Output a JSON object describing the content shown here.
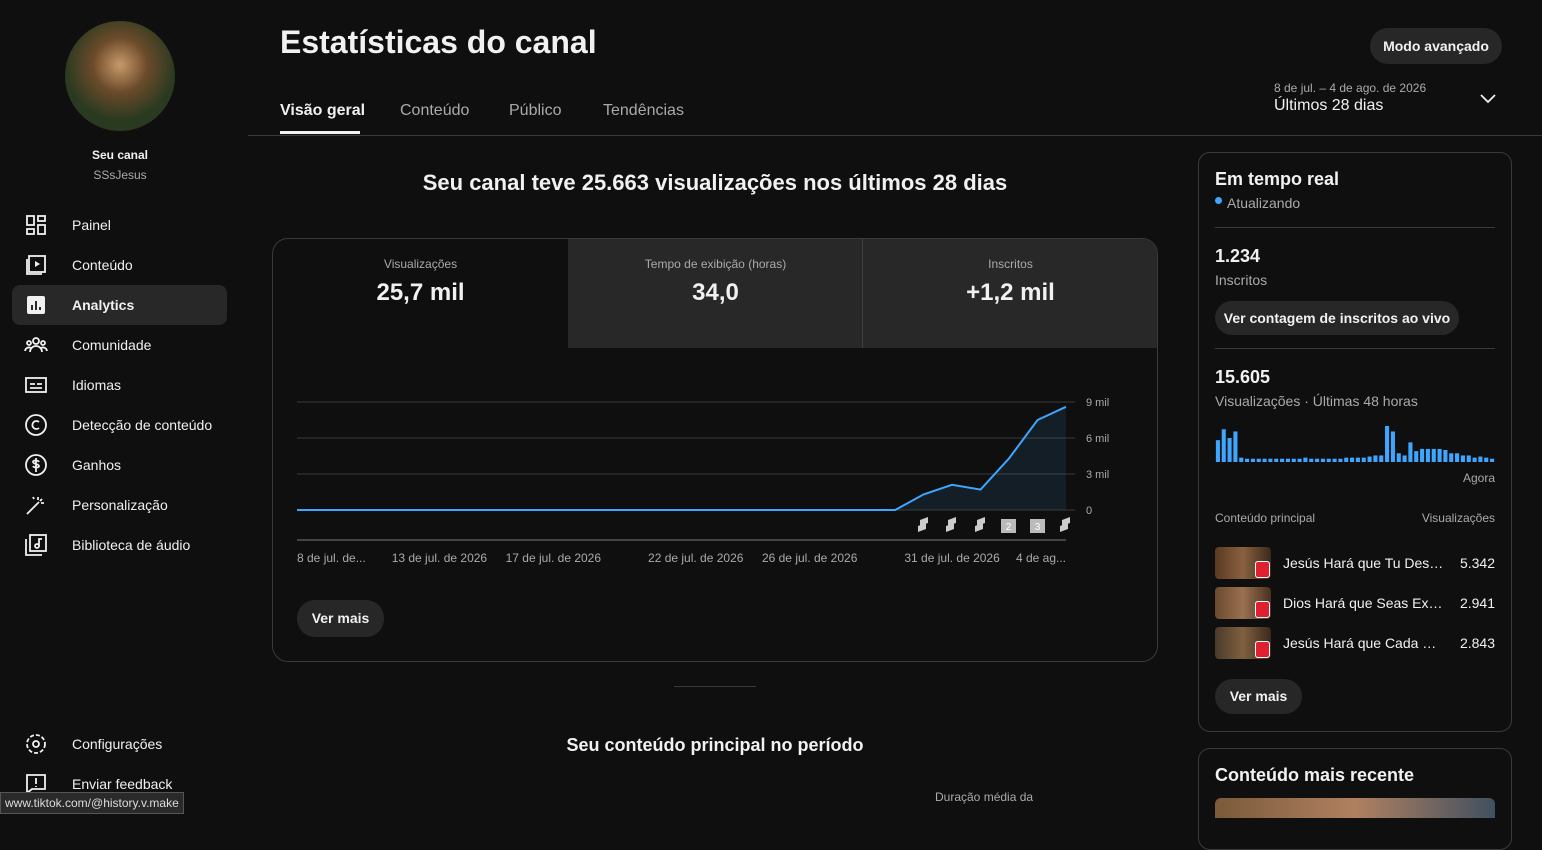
{
  "sidebar": {
    "channel_label": "Seu canal",
    "channel_name": "SSsJesus",
    "nav": [
      "Painel",
      "Conteúdo",
      "Analytics",
      "Comunidade",
      "Idiomas",
      "Detecção de conteúdo",
      "Ganhos",
      "Personalização",
      "Biblioteca de áudio"
    ],
    "bottom_nav": [
      "Configurações",
      "Enviar feedback"
    ]
  },
  "header": {
    "title": "Estatísticas do canal",
    "tabs": [
      "Visão geral",
      "Conteúdo",
      "Público",
      "Tendências"
    ],
    "advanced_button": "Modo avançado",
    "date_range": "8 de jul. – 4 de ago. de 2026",
    "period": "Últimos 28 dias"
  },
  "summary": {
    "headline": "Seu canal teve 25.663 visualizações nos últimos 28 dias",
    "metrics": [
      {
        "label": "Visualizações",
        "value": "25,7 mil"
      },
      {
        "label": "Tempo de exibição (horas)",
        "value": "34,0"
      },
      {
        "label": "Inscritos",
        "value": "+1,2 mil"
      }
    ],
    "markers": [
      "2",
      "3"
    ],
    "more_button": "Ver mais"
  },
  "top_content": {
    "title": "Seu conteúdo principal no período",
    "column": "Duração média da"
  },
  "realtime": {
    "title": "Em tempo real",
    "status": "Atualizando",
    "subscribers": "1.234",
    "subscribers_label": "Inscritos",
    "live_button": "Ver contagem de inscritos ao vivo",
    "views": "15.605",
    "views_label": "Visualizações · Últimas 48 horas",
    "list_header": "Conteúdo principal",
    "list_metric": "Visualizações",
    "items": [
      {
        "title": "Jesús Hará que Tu Des…",
        "views": "5.342"
      },
      {
        "title": "Dios Hará que Seas Ex…",
        "views": "2.941"
      },
      {
        "title": "Jesús Hará que Cada …",
        "views": "2.843"
      }
    ],
    "more_button": "Ver mais"
  },
  "recent": {
    "title": "Conteúdo mais recente"
  },
  "status_url": "www.tiktok.com/@history.v.make",
  "chart_data": [
    {
      "type": "line",
      "color": "#3ea6ff",
      "categories": [
        "8 de jul. de...",
        null,
        null,
        null,
        null,
        "13 de jul. de 2026",
        null,
        null,
        null,
        "17 de jul. de 2026",
        null,
        null,
        null,
        null,
        "22 de jul. de 2026",
        null,
        null,
        null,
        "26 de jul. de 2026",
        null,
        null,
        null,
        null,
        "31 de jul. de 2026",
        null,
        null,
        null,
        "4 de ag..."
      ],
      "values": [
        0,
        0,
        0,
        0,
        0,
        0,
        0,
        0,
        0,
        0,
        0,
        0,
        0,
        0,
        0,
        0,
        0,
        0,
        0,
        0,
        0,
        0,
        1300,
        2100,
        1700,
        4300,
        7500,
        8600
      ],
      "ylim": [
        0,
        9000
      ],
      "yticks": [
        0,
        {
          "value": 3000,
          "label": "3 mil"
        },
        {
          "value": 6000,
          "label": "6 mil"
        },
        {
          "value": 9000,
          "label": "9 mil"
        }
      ],
      "grid": true
    },
    {
      "type": "bar",
      "color": "#3ea6ff",
      "categories": [
        null,
        null,
        null,
        null,
        null,
        null,
        null,
        null,
        null,
        null,
        null,
        null,
        null,
        null,
        null,
        null,
        null,
        null,
        null,
        null,
        null,
        null,
        null,
        null,
        null,
        null,
        null,
        null,
        null,
        null,
        null,
        null,
        null,
        null,
        null,
        null,
        null,
        null,
        null,
        null,
        null,
        null,
        null,
        null,
        null,
        null,
        null,
        "Agora"
      ],
      "values": [
        800,
        1200,
        880,
        1120,
        160,
        120,
        120,
        120,
        120,
        120,
        120,
        120,
        120,
        120,
        120,
        160,
        120,
        120,
        120,
        120,
        120,
        120,
        160,
        160,
        160,
        160,
        200,
        240,
        240,
        1320,
        1120,
        320,
        240,
        720,
        400,
        480,
        480,
        480,
        480,
        440,
        320,
        320,
        240,
        240,
        160,
        200,
        160,
        120
      ]
    }
  ]
}
